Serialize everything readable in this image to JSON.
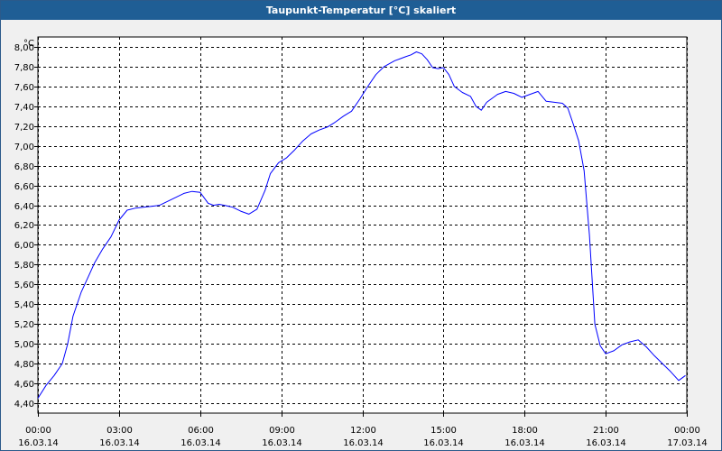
{
  "window": {
    "title": "Taupunkt-Temperatur [°C] skaliert"
  },
  "chart_data": {
    "type": "line",
    "title": "Taupunkt-Temperatur [°C] skaliert",
    "unit_label": "°C",
    "ylim": [
      4.3,
      8.1
    ],
    "xlim_hours": [
      0,
      24
    ],
    "grid": true,
    "line_color": "#0000ff",
    "y_ticks": [
      "4,40",
      "4,60",
      "4,80",
      "5,00",
      "5,20",
      "5,40",
      "5,60",
      "5,80",
      "6,00",
      "6,20",
      "6,40",
      "6,60",
      "6,80",
      "7,00",
      "7,20",
      "7,40",
      "7,60",
      "7,80",
      "8,00"
    ],
    "x_ticks": [
      {
        "time": "00:00",
        "date": "16.03.14"
      },
      {
        "time": "03:00",
        "date": "16.03.14"
      },
      {
        "time": "06:00",
        "date": "16.03.14"
      },
      {
        "time": "09:00",
        "date": "16.03.14"
      },
      {
        "time": "12:00",
        "date": "16.03.14"
      },
      {
        "time": "15:00",
        "date": "16.03.14"
      },
      {
        "time": "18:00",
        "date": "16.03.14"
      },
      {
        "time": "21:00",
        "date": "16.03.14"
      },
      {
        "time": "00:00",
        "date": "17.03.14"
      }
    ],
    "series": [
      {
        "x": [
          0.0,
          0.3,
          0.6,
          0.9,
          1.1,
          1.3,
          1.6,
          1.9,
          2.1,
          2.4,
          2.7,
          3.0,
          3.3,
          3.6,
          3.9,
          4.2,
          4.5,
          4.8,
          5.1,
          5.4,
          5.7,
          6.0,
          6.3,
          6.5,
          6.7,
          6.9,
          7.2,
          7.5,
          7.8,
          8.1,
          8.4,
          8.6,
          8.9,
          9.2,
          9.5,
          9.8,
          10.1,
          10.4,
          10.7,
          11.0,
          11.3,
          11.6,
          11.9,
          12.2,
          12.5,
          12.8,
          13.0,
          13.2,
          13.4,
          13.6,
          13.8,
          14.0,
          14.2,
          14.4,
          14.6,
          14.8,
          15.0,
          15.2,
          15.4,
          15.7,
          16.0,
          16.2,
          16.4,
          16.6,
          16.8,
          17.0,
          17.3,
          17.6,
          17.9,
          18.2,
          18.5,
          18.8,
          19.1,
          19.4,
          19.6,
          19.8,
          20.0,
          20.2,
          20.4,
          20.6,
          20.8,
          21.0,
          21.3,
          21.6,
          21.9,
          22.2,
          22.5,
          22.8,
          23.1,
          23.4,
          23.7,
          23.95
        ],
        "y": [
          4.45,
          4.58,
          4.68,
          4.8,
          5.0,
          5.28,
          5.52,
          5.7,
          5.82,
          5.96,
          6.08,
          6.25,
          6.35,
          6.37,
          6.38,
          6.39,
          6.4,
          6.44,
          6.48,
          6.52,
          6.54,
          6.53,
          6.42,
          6.4,
          6.41,
          6.4,
          6.38,
          6.34,
          6.31,
          6.36,
          6.55,
          6.72,
          6.83,
          6.88,
          6.96,
          7.05,
          7.12,
          7.16,
          7.19,
          7.24,
          7.3,
          7.35,
          7.47,
          7.6,
          7.72,
          7.8,
          7.83,
          7.86,
          7.88,
          7.9,
          7.92,
          7.95,
          7.93,
          7.87,
          7.79,
          7.78,
          7.79,
          7.72,
          7.6,
          7.54,
          7.5,
          7.4,
          7.36,
          7.44,
          7.48,
          7.52,
          7.55,
          7.53,
          7.49,
          7.52,
          7.55,
          7.45,
          7.44,
          7.43,
          7.38,
          7.22,
          7.05,
          6.75,
          6.1,
          5.2,
          4.98,
          4.9,
          4.93,
          4.99,
          5.02,
          5.04,
          4.97,
          4.88,
          4.8,
          4.72,
          4.63,
          4.68
        ]
      }
    ]
  }
}
